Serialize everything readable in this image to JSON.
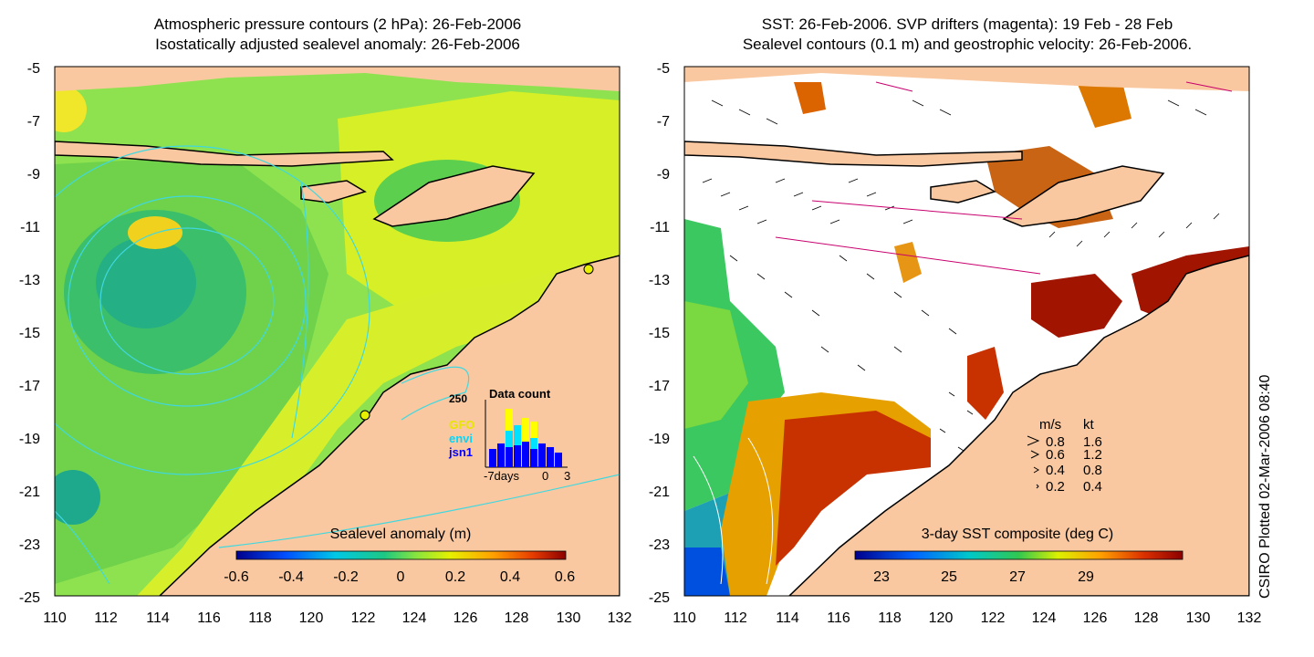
{
  "left_panel": {
    "title_line1": "Atmospheric pressure contours (2 hPa): 26-Feb-2006",
    "title_line2": "Isostatically adjusted sealevel anomaly: 26-Feb-2006",
    "colorbar_title": "Sealevel anomaly (m)",
    "colorbar_ticks": [
      "-0.6",
      "-0.4",
      "-0.2",
      "0",
      "0.2",
      "0.4",
      "0.6"
    ],
    "inset": {
      "title": "Data count",
      "ytick": "250",
      "legend": [
        "GFO",
        "envi",
        "jsn1"
      ],
      "legend_colors": [
        "#ffff00",
        "#00e0ff",
        "#0000ff"
      ],
      "xticks": [
        "-7days",
        "0",
        "3"
      ]
    }
  },
  "right_panel": {
    "title_line1": "SST: 26-Feb-2006. SVP drifters (magenta): 19 Feb - 28 Feb",
    "title_line2": "Sealevel contours (0.1 m) and geostrophic velocity: 26-Feb-2006.",
    "colorbar_title": "3-day SST composite (deg C)",
    "colorbar_ticks": [
      "23",
      "25",
      "27",
      "29"
    ],
    "speed_legend": {
      "header_ms": "m/s",
      "header_kt": "kt",
      "rows": [
        {
          "ms": "0.8",
          "kt": "1.6"
        },
        {
          "ms": "0.6",
          "kt": "1.2"
        },
        {
          "ms": "0.4",
          "kt": "0.8"
        },
        {
          "ms": "0.2",
          "kt": "0.4"
        }
      ]
    }
  },
  "axes": {
    "y_ticks": [
      "-5",
      "-7",
      "-9",
      "-11",
      "-13",
      "-15",
      "-17",
      "-19",
      "-21",
      "-23",
      "-25"
    ],
    "x_ticks": [
      "110",
      "112",
      "114",
      "116",
      "118",
      "120",
      "122",
      "124",
      "126",
      "128",
      "130",
      "132"
    ]
  },
  "side_note": "CSIRO Plotted 02-Mar-2006 08:40",
  "colors": {
    "land": "#f9c8a0",
    "sla_base": "#99e64d",
    "sst_white": "#ffffff"
  }
}
